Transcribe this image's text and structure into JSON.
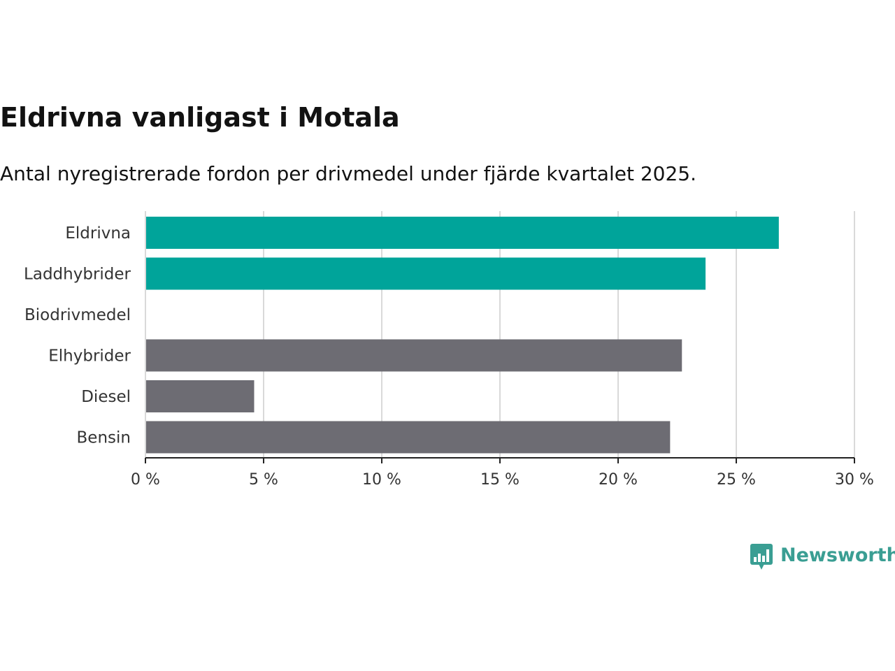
{
  "title": "Eldrivna vanligast i Motala",
  "subtitle": "Antal nyregistrerade fordon per drivmedel under fjärde kvartalet 2025.",
  "logo": {
    "text": "Newsworthy",
    "icon": "bar-chart-speech-bubble-icon"
  },
  "colors": {
    "highlight": "#00a49a",
    "default": "#6d6c73",
    "grid": "#d9d9d9",
    "axis": "#222222",
    "brand": "#3a9e93"
  },
  "chart_data": {
    "type": "bar",
    "orientation": "horizontal",
    "categories": [
      "Eldrivna",
      "Laddhybrider",
      "Biodrivmedel",
      "Elhybrider",
      "Diesel",
      "Bensin"
    ],
    "values": [
      26.8,
      23.7,
      0,
      22.7,
      4.6,
      22.2
    ],
    "highlighted": [
      true,
      true,
      false,
      false,
      false,
      false
    ],
    "unit": "%",
    "xlim": [
      0,
      30
    ],
    "xticks": [
      0,
      5,
      10,
      15,
      20,
      25,
      30
    ],
    "xtick_labels": [
      "0 %",
      "5 %",
      "10 %",
      "15 %",
      "20 %",
      "25 %",
      "30 %"
    ],
    "xlabel": "",
    "ylabel": "",
    "grid": true,
    "legend": "none"
  }
}
